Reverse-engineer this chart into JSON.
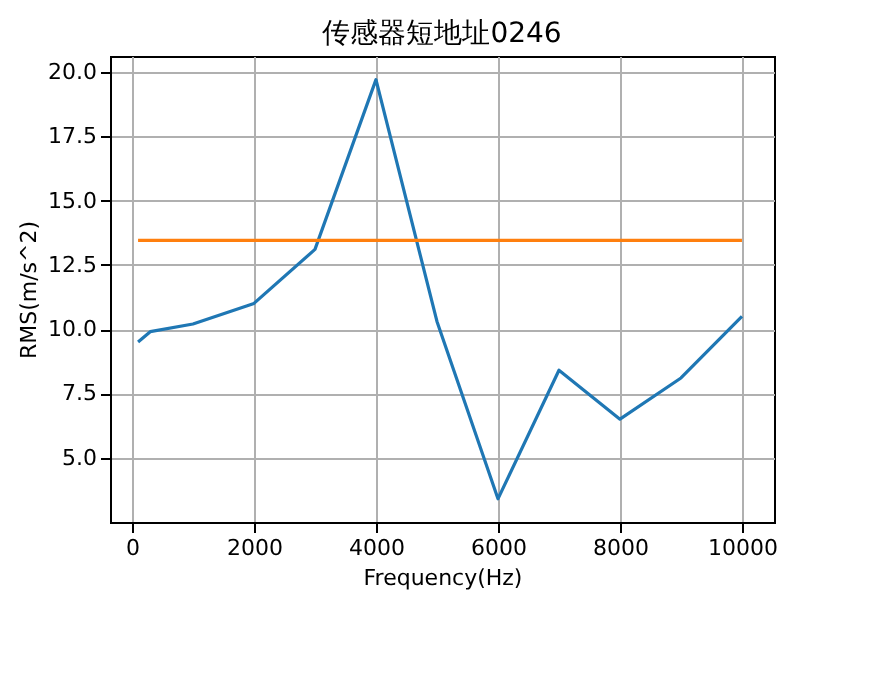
{
  "chart_data": {
    "type": "line",
    "title": "传感器短地址0246",
    "xlabel": "Frequency(Hz)",
    "ylabel": "RMS(m/s^2)",
    "xlim": [
      -360,
      10525
    ],
    "ylim": [
      2.5,
      20.62
    ],
    "xticks": [
      0,
      2000,
      4000,
      6000,
      8000,
      10000
    ],
    "yticks": [
      {
        "value": 5,
        "label": "5.0"
      },
      7.5,
      {
        "value": 10,
        "label": "10.0"
      },
      12.5,
      {
        "value": 15,
        "label": "15.0"
      },
      17.5,
      {
        "value": 20,
        "label": "20.0"
      }
    ],
    "grid": true,
    "legend": false,
    "series": [
      {
        "color": "#1f77b4",
        "x": [
          100,
          300,
          1000,
          2000,
          3000,
          4000,
          5000,
          6000,
          7000,
          8000,
          9000,
          10000
        ],
        "values": [
          9.5,
          9.9,
          10.2,
          11.0,
          13.1,
          19.7,
          10.3,
          3.4,
          8.4,
          6.5,
          8.1,
          10.5
        ]
      },
      {
        "color": "#ff7f0e",
        "x": [
          100,
          10000
        ],
        "values": [
          13.45,
          13.45
        ]
      }
    ]
  }
}
